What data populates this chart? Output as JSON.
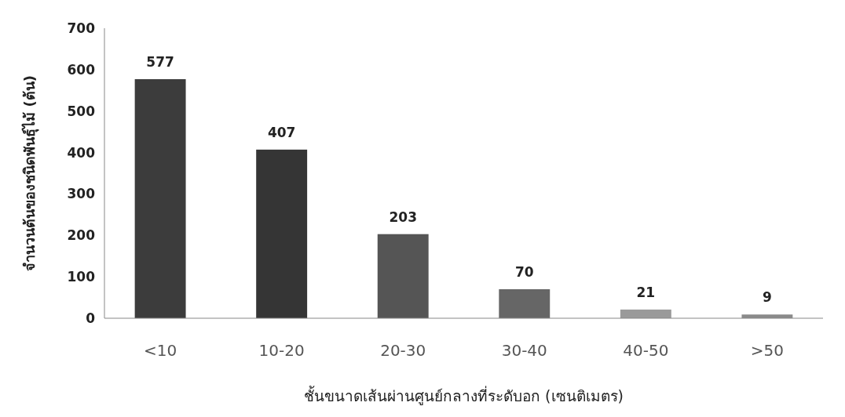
{
  "chart_data": {
    "type": "bar",
    "xlabel": "ชั้นขนาดเส้นผ่านศูนย์กลางที่ระดับอก (เซนติเมตร)",
    "ylabel": "จำนวนต้นของชนิดพันธุ์ไม้ (ต้น)",
    "categories": [
      "<10",
      "10-20",
      "20-30",
      "30-40",
      "40-50",
      ">50"
    ],
    "values": [
      577,
      407,
      203,
      70,
      21,
      9
    ],
    "colors": [
      "#3c3c3c",
      "#353535",
      "#555555",
      "#666666",
      "#9a9a9a",
      "#8a8a8a"
    ],
    "ylim": [
      0,
      700
    ],
    "yticks": [
      0,
      100,
      200,
      300,
      400,
      500,
      600,
      700
    ],
    "grid": false,
    "data_labels": true
  }
}
